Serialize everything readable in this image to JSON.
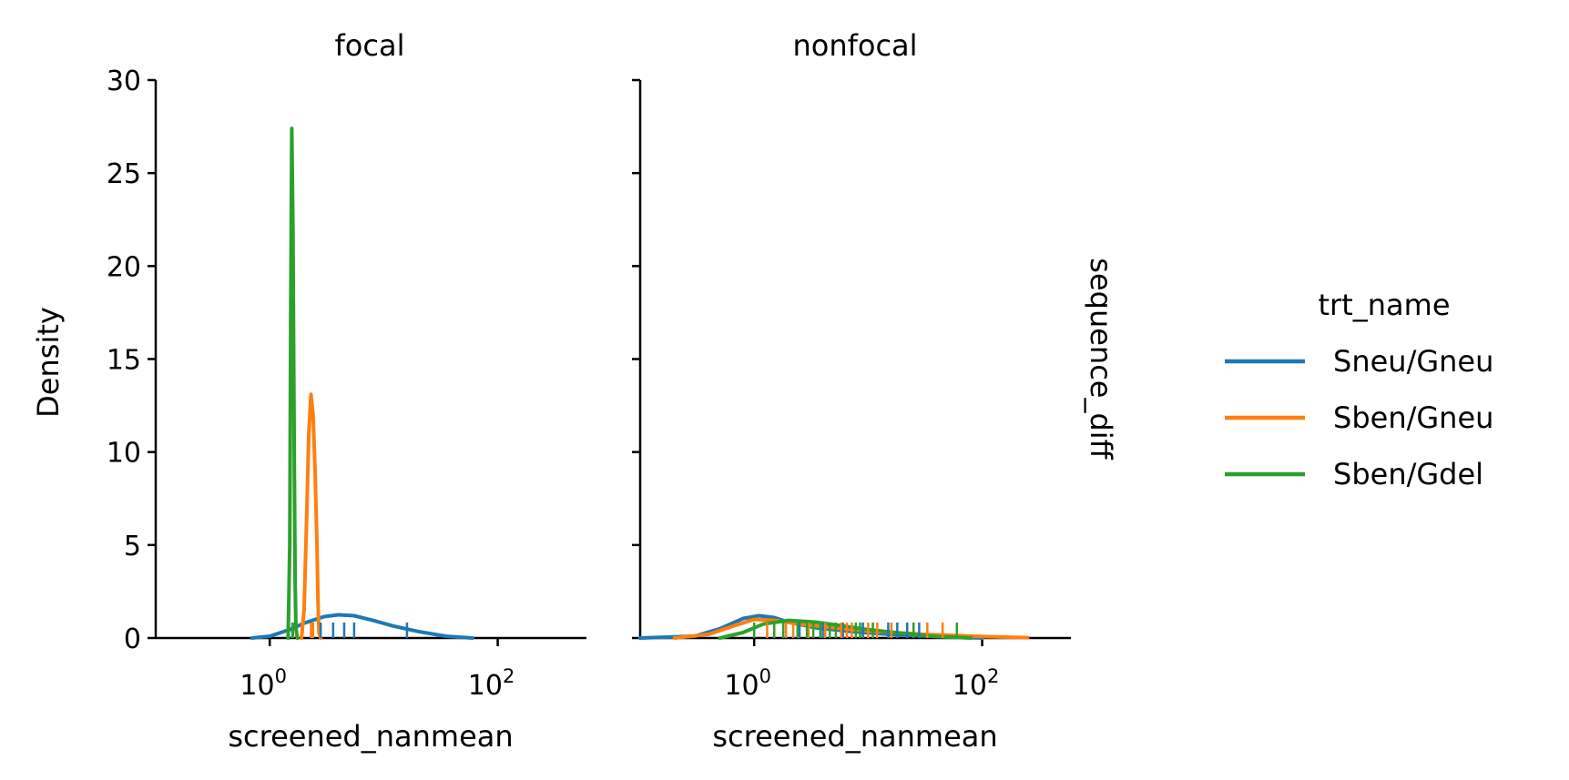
{
  "chart_data": {
    "type": "line",
    "variant": "kde-with-rug",
    "x_scale": "log",
    "xlim": [
      0.1,
      600
    ],
    "ylim": [
      0,
      30
    ],
    "x_ticks": [
      {
        "value": 1,
        "base": "10",
        "exp": "0"
      },
      {
        "value": 100,
        "base": "10",
        "exp": "2"
      }
    ],
    "y_ticks": [
      "0",
      "5",
      "10",
      "15",
      "20",
      "25",
      "30"
    ],
    "ylabel": "Density",
    "row_label": "sequence_diff",
    "legend": {
      "title": "trt_name",
      "placement": "right"
    },
    "series_colors": {
      "Sneu/Gneu": "#1f77b4",
      "Sben/Gneu": "#ff7f0e",
      "Sben/Gdel": "#2ca02c"
    },
    "panels": [
      {
        "title": "focal",
        "xlabel": "screened_nanmean",
        "series": [
          {
            "name": "Sneu/Gneu",
            "x": [
              0.7,
              1.0,
              1.5,
              2.0,
              3.0,
              4.0,
              5.5,
              8.0,
              12.0,
              20.0,
              35.0,
              60.0
            ],
            "y": [
              0.0,
              0.1,
              0.45,
              0.8,
              1.15,
              1.25,
              1.2,
              0.95,
              0.65,
              0.35,
              0.1,
              0.0
            ],
            "rug": [
              2.8,
              3.6,
              4.5,
              5.5,
              16.0
            ]
          },
          {
            "name": "Sben/Gneu",
            "x": [
              1.9,
              2.0,
              2.1,
              2.2,
              2.3,
              2.4,
              2.5,
              2.6,
              2.65,
              2.7,
              2.8
            ],
            "y": [
              0.0,
              1.5,
              6.0,
              11.0,
              13.1,
              12.0,
              9.0,
              5.0,
              2.0,
              0.3,
              0.0
            ],
            "rug": [
              2.3,
              2.4
            ]
          },
          {
            "name": "Sben/Gdel",
            "x": [
              1.45,
              1.5,
              1.53,
              1.56,
              1.6,
              1.64,
              1.67,
              1.7,
              1.75
            ],
            "y": [
              0.0,
              5.0,
              18.0,
              27.4,
              22.0,
              10.0,
              3.0,
              0.5,
              0.0
            ],
            "rug": [
              1.58,
              1.6
            ]
          }
        ]
      },
      {
        "title": "nonfocal",
        "xlabel": "screened_nanmean",
        "series": [
          {
            "name": "Sneu/Gneu",
            "x": [
              0.1,
              0.3,
              0.5,
              0.8,
              1.1,
              1.5,
              2.0,
              3.5,
              7.0,
              15.0,
              40.0,
              100.0
            ],
            "y": [
              0.0,
              0.1,
              0.5,
              1.05,
              1.2,
              1.1,
              0.85,
              0.55,
              0.35,
              0.2,
              0.08,
              0.0
            ],
            "rug": [
              2.5,
              4.0,
              6.0,
              9.0,
              15.0,
              18.0,
              22.0,
              28.0
            ]
          },
          {
            "name": "Sben/Gneu",
            "x": [
              0.2,
              0.4,
              0.7,
              1.0,
              1.5,
              2.5,
              5.0,
              10.0,
              30.0,
              100.0,
              250.0
            ],
            "y": [
              0.0,
              0.2,
              0.7,
              1.0,
              0.95,
              0.75,
              0.55,
              0.38,
              0.2,
              0.08,
              0.02
            ],
            "rug": [
              1.3,
              1.9,
              2.2,
              3.0,
              4.2,
              5.8,
              6.5,
              7.2,
              10.0,
              12.0,
              16.0,
              33.0,
              45.0
            ]
          },
          {
            "name": "Sben/Gdel",
            "x": [
              0.5,
              0.8,
              1.2,
              2.0,
              3.5,
              6.0,
              10.0,
              20.0,
              40.0,
              80.0
            ],
            "y": [
              0.0,
              0.3,
              0.75,
              0.95,
              0.85,
              0.65,
              0.45,
              0.25,
              0.08,
              0.0
            ],
            "rug": [
              1.0,
              1.5,
              1.8,
              2.4,
              2.9,
              3.3,
              3.8,
              4.6,
              5.2,
              7.8,
              8.5,
              11.0,
              25.0,
              60.0
            ]
          }
        ]
      }
    ]
  }
}
